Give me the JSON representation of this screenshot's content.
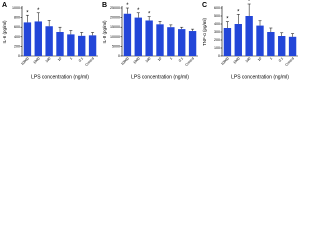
{
  "chart_data": [
    {
      "type": "bar",
      "panel": "A",
      "ylabel": "IL-6 (pg/ml)",
      "xlabel": "LPS concentration (ng/ml)",
      "categories": [
        "10000",
        "1000",
        "100",
        "10",
        "1",
        "0.1",
        "Control"
      ],
      "values": [
        700,
        720,
        620,
        500,
        450,
        420,
        430
      ],
      "errors": [
        150,
        180,
        120,
        100,
        80,
        70,
        60
      ],
      "markers": [
        "*",
        "*",
        null,
        null,
        null,
        null,
        null
      ],
      "color": "#2346d8",
      "ylim": [
        0,
        1000
      ],
      "yticks": [
        0,
        200,
        400,
        600,
        800,
        1000
      ]
    },
    {
      "type": "bar",
      "panel": "B",
      "ylabel": "IL-8 (pg/ml)",
      "xlabel": "LPS concentration (ng/ml)",
      "categories": [
        "10000",
        "1000",
        "100",
        "10",
        "1",
        "0.1",
        "Control"
      ],
      "values": [
        22000,
        20000,
        18500,
        16500,
        15000,
        14000,
        13000
      ],
      "errors": [
        3000,
        2500,
        2000,
        1500,
        1200,
        1000,
        1000
      ],
      "markers": [
        "*",
        "*",
        "*",
        null,
        null,
        null,
        null
      ],
      "color": "#2346d8",
      "ylim": [
        0,
        25000
      ],
      "yticks": [
        0,
        5000,
        10000,
        15000,
        20000,
        25000
      ]
    },
    {
      "type": "bar",
      "panel": "C",
      "ylabel": "TNF-α (pg/ml)",
      "xlabel": "LPS concentration (ng/ml)",
      "categories": [
        "10000",
        "1000",
        "100",
        "10",
        "1",
        "0.1",
        "Control"
      ],
      "values": [
        350,
        400,
        500,
        380,
        300,
        250,
        240
      ],
      "errors": [
        80,
        120,
        150,
        60,
        50,
        40,
        40
      ],
      "markers": [
        "*",
        "*",
        "*",
        null,
        null,
        null,
        null
      ],
      "color": "#2346d8",
      "ylim": [
        0,
        600
      ],
      "yticks": [
        0,
        100,
        200,
        300,
        400,
        500,
        600
      ]
    }
  ]
}
